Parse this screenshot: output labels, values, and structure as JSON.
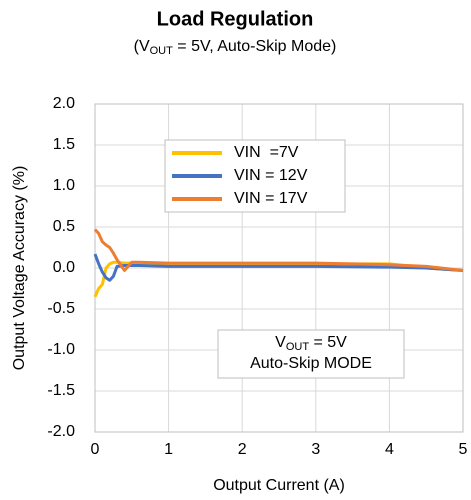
{
  "chart_data": {
    "type": "line",
    "title": "Load Regulation",
    "subtitle": {
      "prefix": "(V",
      "sub": "OUT",
      "rest": " = 5V, Auto-Skip Mode)"
    },
    "xlabel": "Output Current (A)",
    "ylabel": "Output Voltage Accuracy (%)",
    "x": [
      0,
      0.05,
      0.1,
      0.15,
      0.2,
      0.25,
      0.3,
      0.4,
      0.5,
      0.6,
      1,
      2,
      3,
      4,
      4.5,
      5
    ],
    "series": [
      {
        "name": "VIN  =7V",
        "color": "#FFC000",
        "values": [
          -0.35,
          -0.25,
          -0.2,
          0.0,
          0.05,
          0.07,
          0.07,
          0.06,
          0.06,
          0.06,
          0.05,
          0.05,
          0.05,
          0.05,
          0.0,
          -0.03
        ]
      },
      {
        "name": "VIN = 12V",
        "color": "#4472C4",
        "values": [
          0.17,
          0.05,
          -0.05,
          -0.12,
          -0.15,
          -0.1,
          0.02,
          0.03,
          0.03,
          0.03,
          0.02,
          0.02,
          0.02,
          0.01,
          0.0,
          -0.03
        ]
      },
      {
        "name": "VIN = 17V",
        "color": "#ED7D31",
        "values": [
          0.47,
          0.42,
          0.32,
          0.28,
          0.25,
          0.18,
          0.1,
          -0.03,
          0.07,
          0.07,
          0.06,
          0.06,
          0.06,
          0.04,
          0.02,
          -0.03
        ]
      }
    ],
    "annotation": {
      "line1": {
        "prefix": "V",
        "sub": "OUT",
        "rest": " = 5V"
      },
      "line2": "Auto-Skip MODE"
    },
    "xlim": [
      0,
      5
    ],
    "xticks": [
      0,
      1,
      2,
      3,
      4,
      5
    ],
    "ylim": [
      -2,
      2
    ],
    "yticks": [
      {
        "value": -2,
        "label": "-2.0"
      },
      {
        "value": -1.5,
        "label": "-1.5"
      },
      {
        "value": -1,
        "label": "-1.0"
      },
      {
        "value": -0.5,
        "label": "-0.5"
      },
      {
        "value": 0,
        "label": "0.0"
      },
      {
        "value": 0.5,
        "label": "0.5"
      },
      {
        "value": 1,
        "label": "1.0"
      },
      {
        "value": 1.5,
        "label": "1.5"
      },
      {
        "value": 2,
        "label": "2.0"
      }
    ],
    "grid": true
  }
}
